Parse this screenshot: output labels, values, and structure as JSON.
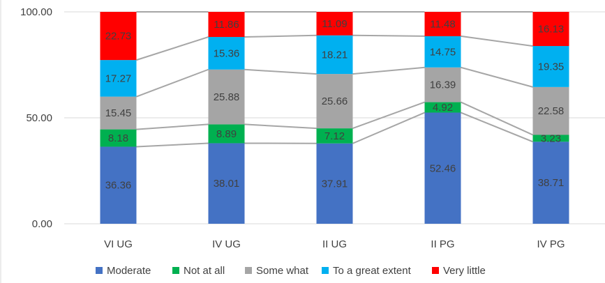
{
  "chart_data": {
    "type": "bar",
    "stacked": true,
    "categories": [
      "VI UG",
      "IV UG",
      "II UG",
      "II PG",
      "IV PG"
    ],
    "series": [
      {
        "name": "Moderate",
        "color": "#4472C4",
        "values": [
          36.36,
          38.01,
          37.91,
          52.46,
          38.71
        ],
        "labels": [
          "36.36",
          "38.01",
          "37.91",
          "52.46",
          "38.71"
        ]
      },
      {
        "name": "Not at all",
        "color": "#00B050",
        "values": [
          8.18,
          8.89,
          7.12,
          4.92,
          3.23
        ],
        "labels": [
          "8.18",
          "8.89",
          "7.12",
          "4.92",
          "3.23"
        ]
      },
      {
        "name": "Some what",
        "color": "#A5A5A5",
        "values": [
          15.45,
          25.88,
          25.66,
          16.39,
          22.58
        ],
        "labels": [
          "15.45",
          "25.88",
          "25.66",
          "16.39",
          "22.58"
        ]
      },
      {
        "name": "To a great extent",
        "color": "#00B0F0",
        "values": [
          17.27,
          15.36,
          18.21,
          14.75,
          19.35
        ],
        "labels": [
          "17.27",
          "15.36",
          "18.21",
          "14.75",
          "19.35"
        ]
      },
      {
        "name": "Very little",
        "color": "#FF0000",
        "values": [
          22.73,
          11.86,
          11.09,
          11.48,
          16.13
        ],
        "labels": [
          "22.73",
          "11.86",
          "11.09",
          "11.48",
          "16.13"
        ]
      }
    ],
    "yticks": [
      "0.00",
      "50.00",
      "100.00"
    ],
    "ylim": [
      0,
      100
    ],
    "series_lines": true,
    "grid": true,
    "legend": "bottom",
    "title": "",
    "xlabel": "",
    "ylabel": ""
  }
}
